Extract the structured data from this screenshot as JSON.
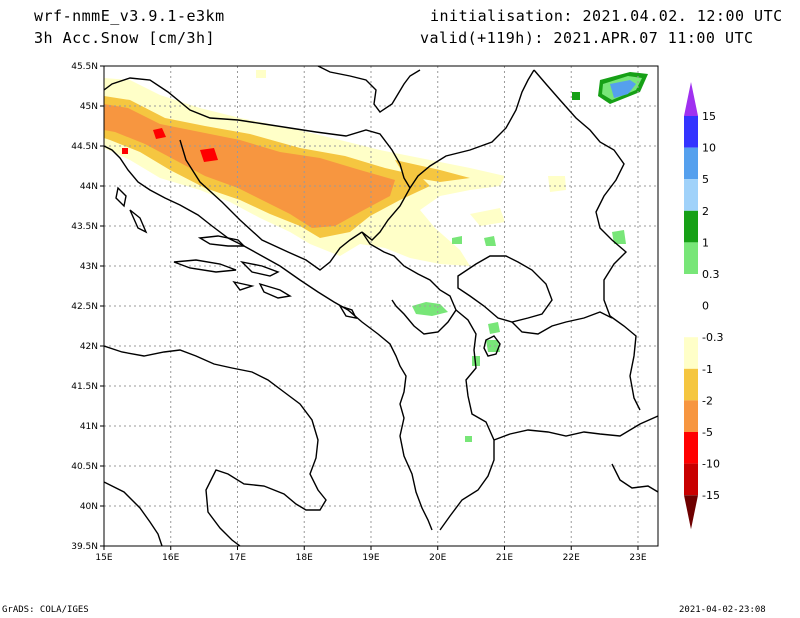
{
  "header": {
    "model": "wrf-nmmE_v3.9.1-e3km",
    "variable": "3h Acc.Snow [cm/3h]",
    "init": "initialisation: 2021.04.02. 12:00 UTC",
    "valid": "valid(+119h): 2021.APR.07 11:00 UTC"
  },
  "axes": {
    "lat_labels": [
      "45.5N",
      "45N",
      "44.5N",
      "44N",
      "43.5N",
      "43N",
      "42.5N",
      "42N",
      "41.5N",
      "41N",
      "40.5N",
      "40N",
      "39.5N"
    ],
    "lon_labels": [
      "15E",
      "16E",
      "17E",
      "18E",
      "19E",
      "20E",
      "21E",
      "22E",
      "23E"
    ]
  },
  "legend": {
    "labels": [
      "15",
      "10",
      "5",
      "2",
      "1",
      "0.3",
      "0",
      "-0.3",
      "-1",
      "-2",
      "-5",
      "-10",
      "-15"
    ],
    "colors": [
      "#3333ff",
      "#55a0ee",
      "#a0d2fa",
      "#16a016",
      "#78e678",
      "#ffffff",
      "#ffffff",
      "#ffffc8",
      "#f5c640",
      "#f79640",
      "#ff0000",
      "#c80000",
      "#8c0000"
    ],
    "top_arrow_color": "#a030f0",
    "bottom_arrow_color": "#6e0000"
  },
  "footer": {
    "credit": "GrADS: COLA/IGES",
    "timestamp": "2021-04-02-23:08"
  }
}
